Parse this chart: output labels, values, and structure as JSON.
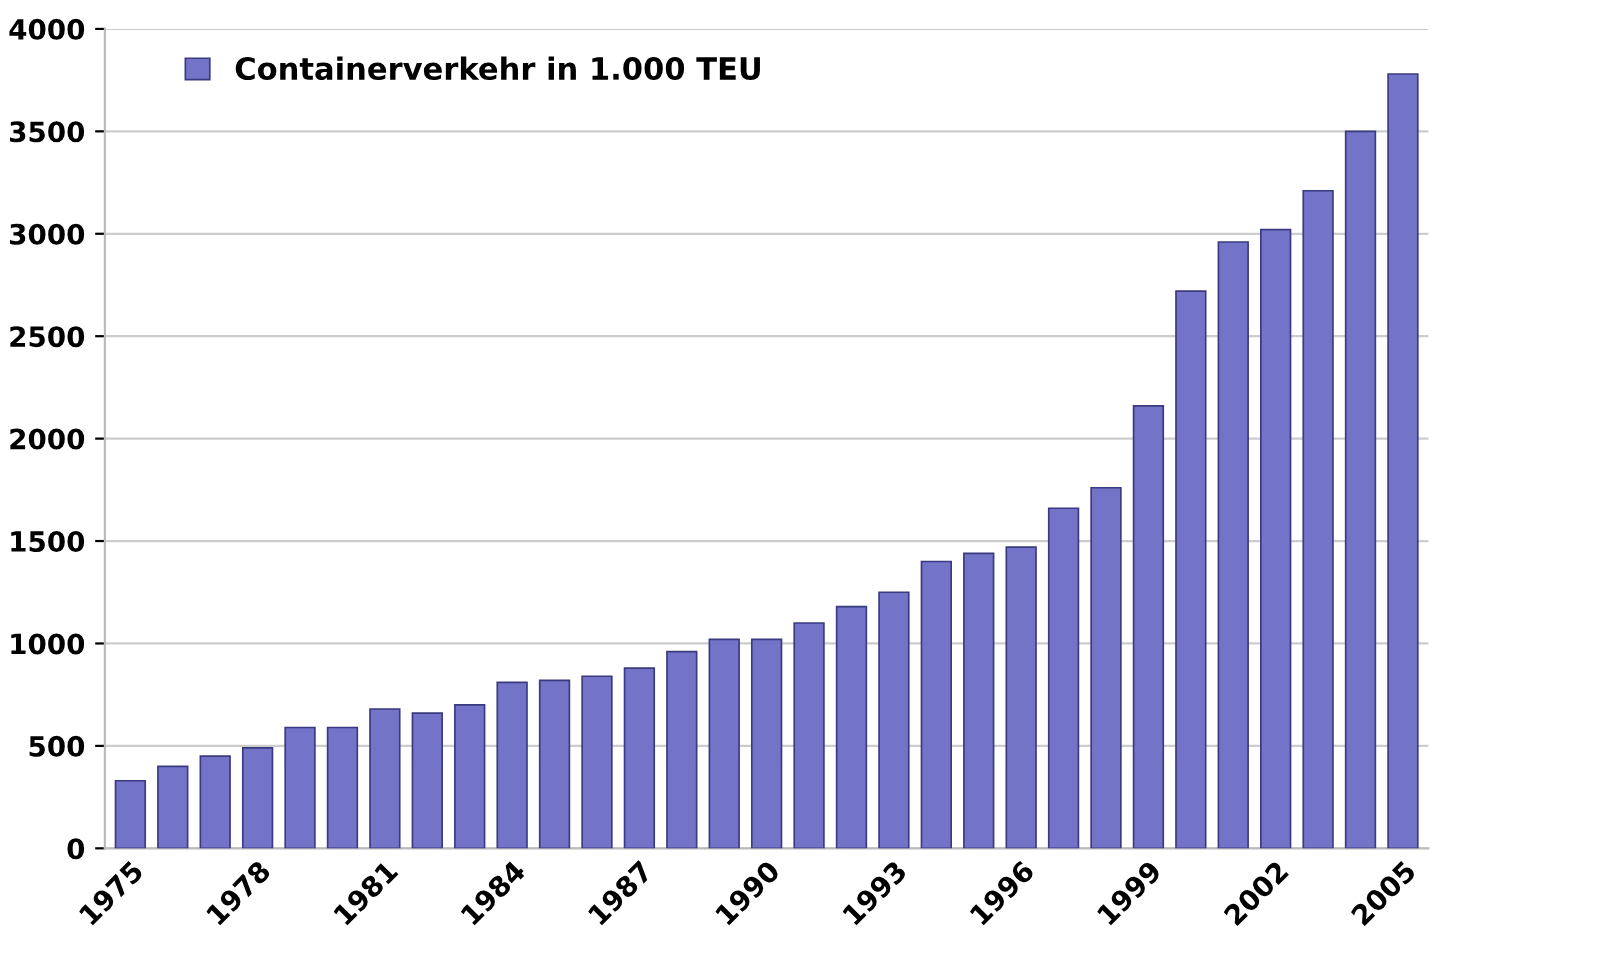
{
  "chart_data": {
    "type": "bar",
    "categories": [
      "1975",
      null,
      null,
      "1978",
      null,
      null,
      "1981",
      null,
      null,
      "1984",
      null,
      null,
      "1987",
      null,
      null,
      "1990",
      null,
      null,
      "1993",
      null,
      null,
      "1996",
      null,
      null,
      "1999",
      null,
      null,
      "2002",
      null,
      null,
      "2005"
    ],
    "series": [
      {
        "name": "Containerverkehr in 1.000 TEU",
        "color": "#7373c8",
        "values": [
          330,
          400,
          450,
          490,
          590,
          590,
          680,
          660,
          700,
          810,
          820,
          840,
          880,
          960,
          1020,
          1020,
          1100,
          1180,
          1250,
          1400,
          1440,
          1470,
          1660,
          1760,
          2160,
          2720,
          2960,
          3020,
          3210,
          3500,
          3780
        ]
      }
    ],
    "ylim": [
      0,
      4000
    ],
    "yticks": [
      0,
      500,
      1000,
      1500,
      2000,
      2500,
      3000,
      3500,
      4000
    ],
    "grid": "y",
    "legend": "top left"
  }
}
